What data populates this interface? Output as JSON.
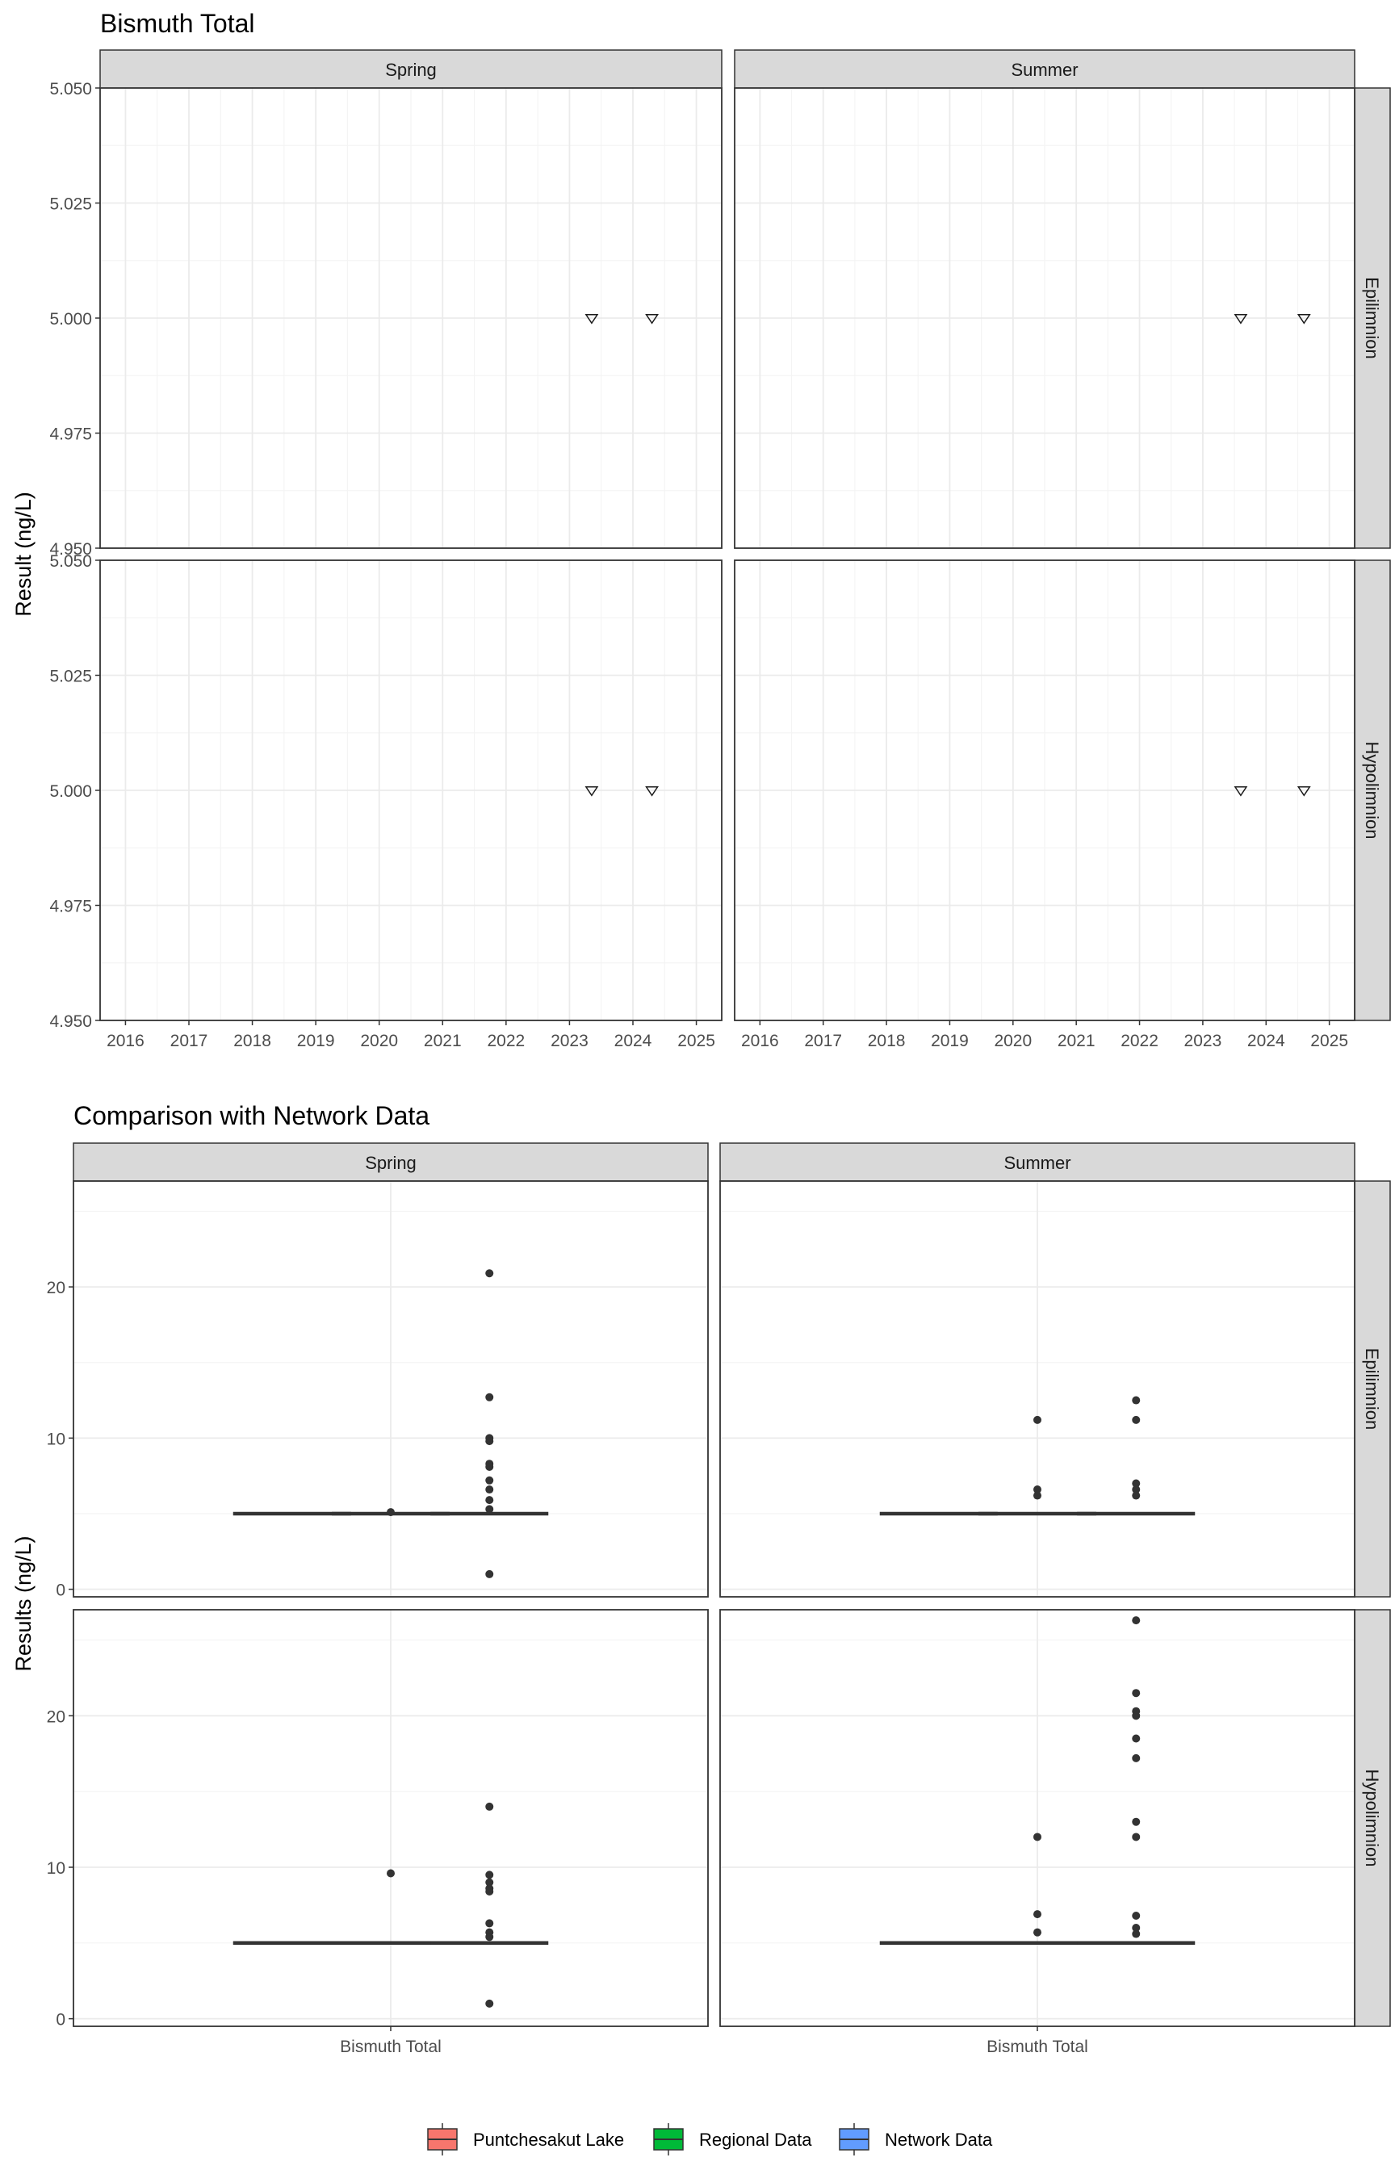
{
  "chart_data": [
    {
      "type": "scatter",
      "title": "Bismuth Total",
      "ylabel": "Result (ng/L)",
      "xlabel": "",
      "facet_columns": [
        "Spring",
        "Summer"
      ],
      "facet_rows": [
        "Epilimnion",
        "Hypolimnion"
      ],
      "x_ticks": [
        "2016",
        "2017",
        "2018",
        "2019",
        "2020",
        "2021",
        "2022",
        "2023",
        "2024",
        "2025"
      ],
      "xlim": [
        2015.6,
        2025.4
      ],
      "y_ticks": [
        "4.950",
        "4.975",
        "5.000",
        "5.025",
        "5.050"
      ],
      "ylim": [
        4.95,
        5.05
      ],
      "marker": "open down-triangle",
      "grid": true,
      "panels": [
        {
          "column": "Spring",
          "row": "Epilimnion",
          "points": [
            {
              "x": 2023.35,
              "y": 5.0
            },
            {
              "x": 2024.3,
              "y": 5.0
            }
          ]
        },
        {
          "column": "Summer",
          "row": "Epilimnion",
          "points": [
            {
              "x": 2023.6,
              "y": 5.0
            },
            {
              "x": 2024.6,
              "y": 5.0
            }
          ]
        },
        {
          "column": "Spring",
          "row": "Hypolimnion",
          "points": [
            {
              "x": 2023.35,
              "y": 5.0
            },
            {
              "x": 2024.3,
              "y": 5.0
            }
          ]
        },
        {
          "column": "Summer",
          "row": "Hypolimnion",
          "points": [
            {
              "x": 2023.6,
              "y": 5.0
            },
            {
              "x": 2024.6,
              "y": 5.0
            }
          ]
        }
      ]
    },
    {
      "type": "box",
      "title": "Comparison with Network Data",
      "ylabel": "Results (ng/L)",
      "xlabel": "",
      "facet_columns": [
        "Spring",
        "Summer"
      ],
      "facet_rows": [
        "Epilimnion",
        "Hypolimnion"
      ],
      "categories": [
        "Bismuth Total"
      ],
      "y_ticks": [
        0,
        10,
        20
      ],
      "ylim": [
        -0.5,
        27
      ],
      "grid": true,
      "legend": {
        "position": "bottom",
        "entries": [
          {
            "name": "Puntchesakut Lake",
            "color": "#F8766D"
          },
          {
            "name": "Regional Data",
            "color": "#00BA38"
          },
          {
            "name": "Network Data",
            "color": "#619CFF"
          }
        ]
      },
      "panels": [
        {
          "column": "Spring",
          "row": "Epilimnion",
          "series": [
            {
              "name": "Puntchesakut Lake",
              "median": 5,
              "outliers": []
            },
            {
              "name": "Regional Data",
              "median": 5,
              "outliers": [
                5.1
              ]
            },
            {
              "name": "Network Data",
              "median": 5,
              "outliers": [
                20.9,
                12.7,
                10.0,
                9.8,
                8.3,
                8.1,
                7.2,
                6.6,
                5.9,
                5.3,
                1.0
              ]
            }
          ]
        },
        {
          "column": "Summer",
          "row": "Epilimnion",
          "series": [
            {
              "name": "Puntchesakut Lake",
              "median": 5,
              "outliers": []
            },
            {
              "name": "Regional Data",
              "median": 5,
              "outliers": [
                11.2,
                6.6,
                6.2
              ]
            },
            {
              "name": "Network Data",
              "median": 5,
              "outliers": [
                12.5,
                11.2,
                7.0,
                6.6,
                6.2
              ]
            }
          ]
        },
        {
          "column": "Spring",
          "row": "Hypolimnion",
          "series": [
            {
              "name": "Puntchesakut Lake",
              "median": 5,
              "outliers": []
            },
            {
              "name": "Regional Data",
              "median": 5,
              "outliers": [
                9.6
              ]
            },
            {
              "name": "Network Data",
              "median": 5,
              "outliers": [
                14.0,
                9.5,
                9.0,
                8.6,
                8.4,
                6.3,
                5.7,
                5.4,
                1.0
              ]
            }
          ]
        },
        {
          "column": "Summer",
          "row": "Hypolimnion",
          "series": [
            {
              "name": "Puntchesakut Lake",
              "median": 5,
              "outliers": []
            },
            {
              "name": "Regional Data",
              "median": 5,
              "outliers": [
                12.0,
                6.9,
                5.7
              ]
            },
            {
              "name": "Network Data",
              "median": 5,
              "outliers": [
                26.3,
                21.5,
                20.3,
                20.0,
                18.5,
                17.2,
                13.0,
                12.0,
                6.8,
                6.0,
                5.6
              ]
            }
          ]
        }
      ]
    }
  ]
}
